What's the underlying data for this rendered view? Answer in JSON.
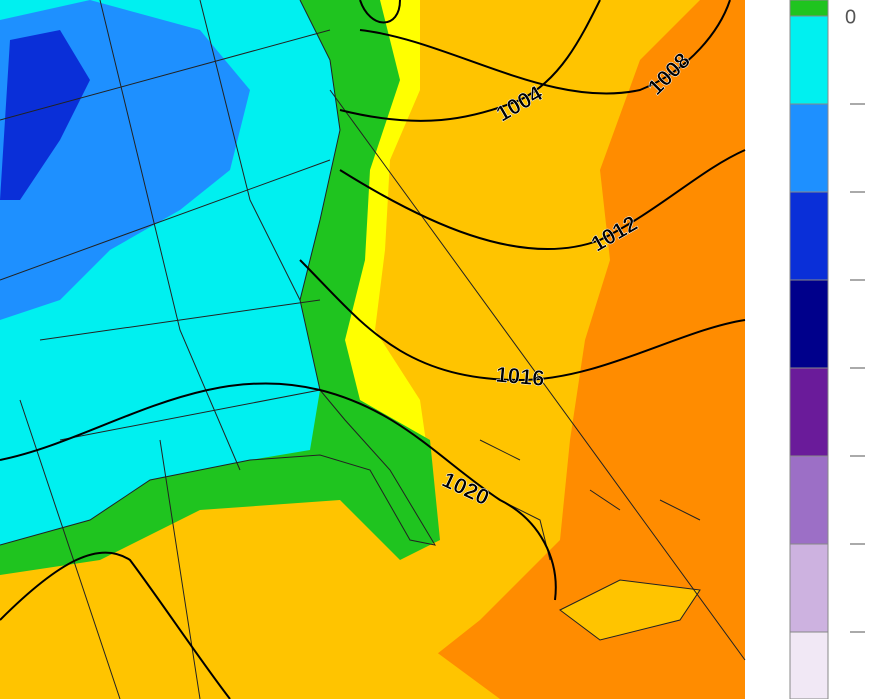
{
  "map": {
    "isobar_labels": [
      "1004",
      "1008",
      "1012",
      "1016",
      "1020"
    ],
    "colorbar": {
      "top_label": "0"
    }
  }
}
